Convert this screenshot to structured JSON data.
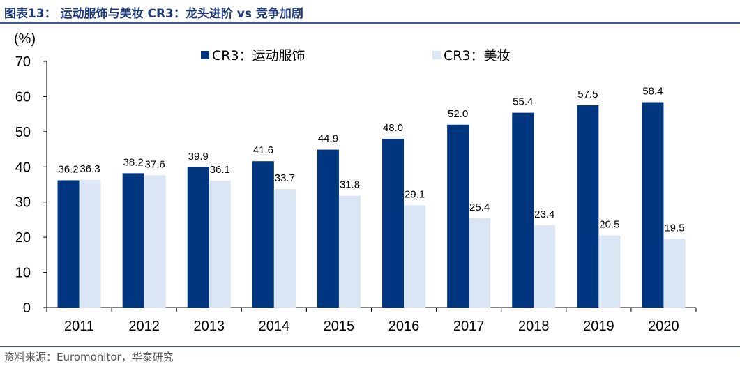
{
  "title": "图表13：  运动服饰与美妆 CR3：龙头进阶 vs 竞争加剧",
  "source": "资料来源：Euromonitor，华泰研究",
  "chart_data": {
    "type": "bar",
    "ylabel": "(%)",
    "ylim": [
      0,
      70
    ],
    "yticks": [
      0,
      10,
      20,
      30,
      40,
      50,
      60,
      70
    ],
    "categories": [
      "2011",
      "2012",
      "2013",
      "2014",
      "2015",
      "2016",
      "2017",
      "2018",
      "2019",
      "2020"
    ],
    "series": [
      {
        "name": "CR3：运动服饰",
        "color": "#003580",
        "values": [
          36.2,
          38.2,
          39.9,
          41.6,
          44.9,
          48.0,
          52.0,
          55.4,
          57.5,
          58.4
        ],
        "labels": [
          "36.2",
          "38.2",
          "39.9",
          "41.6",
          "44.9",
          "48.0",
          "52.0",
          "55.4",
          "57.5",
          "58.4"
        ]
      },
      {
        "name": "CR3：美妆",
        "color": "#dbe6f4",
        "values": [
          36.3,
          37.6,
          36.1,
          33.7,
          31.8,
          29.1,
          25.4,
          23.4,
          20.5,
          19.5
        ],
        "labels": [
          "36.3",
          "37.6",
          "36.1",
          "33.7",
          "31.8",
          "29.1",
          "25.4",
          "23.4",
          "20.5",
          "19.5"
        ]
      }
    ],
    "legend_position": "top",
    "grid": false
  }
}
